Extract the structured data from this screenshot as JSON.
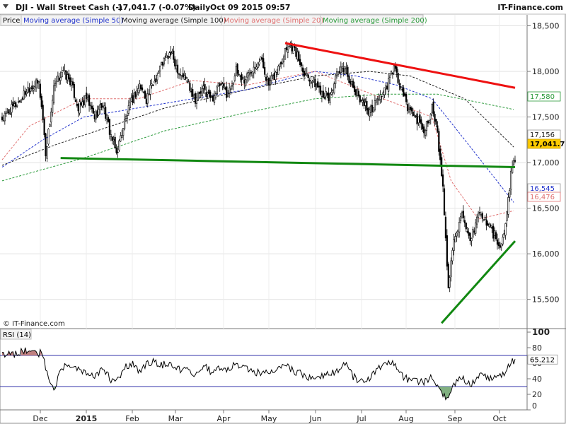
{
  "header": {
    "symbol": "DJI - Wall Street Cash (-)",
    "last": "17,041.7 (-0.07%)",
    "period": "Daily",
    "datetime": "Oct 09 2015 09:57",
    "brand": "IT-Finance.com"
  },
  "legend": {
    "price": "Price",
    "ma50": "Moving average (Simple 50)",
    "ma100": "Moving average (Simple 100)",
    "ma20": "Moving average (Simple 20)",
    "ma200": "Moving average (Simple 200)"
  },
  "watermark": "© IT-Finance.com",
  "colors": {
    "ma50": "#2233cc",
    "ma100": "#222222",
    "ma20": "#e07070",
    "ma200": "#2a9a3a",
    "resistance": "#ee1111",
    "support": "#118811",
    "last_label_bg": "#ffcc00"
  },
  "chart_data": [
    {
      "type": "candlestick",
      "x_ticks": [
        "Dec",
        "2015",
        "Feb",
        "Mar",
        "Apr",
        "May",
        "Jun",
        "Jul",
        "Aug",
        "Sep",
        "Oct"
      ],
      "y_ticks": [
        "18,500",
        "18,000",
        "17,500",
        "17,000",
        "16,500",
        "16,000",
        "15,500"
      ],
      "ylim": [
        15180,
        18620
      ],
      "labels": {
        "ma200": "17,580",
        "ma100": "17,156",
        "last": "17,041.7",
        "ma50": "16,545",
        "ma20": "16,476"
      },
      "close_anchors": [
        [
          0,
          17480
        ],
        [
          8,
          17600
        ],
        [
          14,
          17700
        ],
        [
          19,
          17820
        ],
        [
          27,
          17870
        ],
        [
          30,
          17480
        ],
        [
          32,
          17100
        ],
        [
          38,
          17800
        ],
        [
          44,
          18000
        ],
        [
          50,
          17900
        ],
        [
          56,
          17600
        ],
        [
          62,
          17700
        ],
        [
          68,
          17500
        ],
        [
          74,
          17650
        ],
        [
          79,
          17350
        ],
        [
          84,
          17100
        ],
        [
          90,
          17450
        ],
        [
          96,
          17700
        ],
        [
          101,
          17850
        ],
        [
          106,
          17700
        ],
        [
          112,
          17900
        ],
        [
          118,
          18100
        ],
        [
          124,
          18200
        ],
        [
          130,
          18000
        ],
        [
          136,
          17900
        ],
        [
          142,
          17700
        ],
        [
          148,
          17800
        ],
        [
          154,
          17700
        ],
        [
          160,
          17850
        ],
        [
          166,
          17750
        ],
        [
          172,
          18000
        ],
        [
          178,
          17900
        ],
        [
          184,
          18050
        ],
        [
          190,
          18150
        ],
        [
          196,
          17850
        ],
        [
          202,
          18000
        ],
        [
          208,
          18250
        ],
        [
          212,
          18300
        ],
        [
          216,
          18200
        ],
        [
          222,
          18000
        ],
        [
          228,
          17900
        ],
        [
          234,
          17800
        ],
        [
          240,
          17700
        ],
        [
          246,
          17950
        ],
        [
          252,
          18050
        ],
        [
          258,
          17800
        ],
        [
          264,
          17700
        ],
        [
          270,
          17550
        ],
        [
          276,
          17700
        ],
        [
          282,
          17800
        ],
        [
          288,
          18050
        ],
        [
          292,
          17850
        ],
        [
          298,
          17600
        ],
        [
          304,
          17500
        ],
        [
          310,
          17350
        ],
        [
          316,
          17600
        ],
        [
          320,
          17300
        ],
        [
          324,
          16700
        ],
        [
          326,
          16200
        ],
        [
          328,
          15600
        ],
        [
          332,
          16200
        ],
        [
          338,
          16400
        ],
        [
          344,
          16100
        ],
        [
          350,
          16450
        ],
        [
          356,
          16350
        ],
        [
          362,
          16200
        ],
        [
          366,
          16050
        ],
        [
          370,
          16300
        ],
        [
          374,
          16900
        ],
        [
          377,
          17042
        ]
      ],
      "moving_averages": {
        "ma20": [
          [
            0,
            17030
          ],
          [
            20,
            17400
          ],
          [
            60,
            17700
          ],
          [
            100,
            17700
          ],
          [
            140,
            17900
          ],
          [
            180,
            17850
          ],
          [
            230,
            18000
          ],
          [
            280,
            17700
          ],
          [
            316,
            17500
          ],
          [
            330,
            16800
          ],
          [
            350,
            16380
          ],
          [
            377,
            16476
          ]
        ],
        "ma50": [
          [
            0,
            16950
          ],
          [
            30,
            17250
          ],
          [
            60,
            17500
          ],
          [
            100,
            17600
          ],
          [
            140,
            17700
          ],
          [
            180,
            17800
          ],
          [
            230,
            18000
          ],
          [
            260,
            17950
          ],
          [
            290,
            17850
          ],
          [
            316,
            17700
          ],
          [
            340,
            17250
          ],
          [
            377,
            16545
          ]
        ],
        "ma100": [
          [
            0,
            16970
          ],
          [
            40,
            17200
          ],
          [
            80,
            17400
          ],
          [
            120,
            17600
          ],
          [
            180,
            17800
          ],
          [
            230,
            17950
          ],
          [
            270,
            18000
          ],
          [
            300,
            17950
          ],
          [
            340,
            17700
          ],
          [
            377,
            17156
          ]
        ],
        "ma200": [
          [
            0,
            16800
          ],
          [
            60,
            17050
          ],
          [
            120,
            17350
          ],
          [
            180,
            17550
          ],
          [
            230,
            17700
          ],
          [
            280,
            17750
          ],
          [
            320,
            17750
          ],
          [
            377,
            17580
          ]
        ]
      },
      "trendlines": [
        {
          "name": "resistance",
          "from": [
            208,
            18310
          ],
          "to": [
            377,
            17820
          ]
        },
        {
          "name": "support",
          "from": [
            43,
            17050
          ],
          "to": [
            377,
            16950
          ]
        },
        {
          "name": "rising-support",
          "from": [
            323,
            15240
          ],
          "to": [
            377,
            16140
          ]
        }
      ]
    },
    {
      "type": "line",
      "title": "RSI (14)",
      "y_ticks": [
        "100",
        "80",
        "60",
        "40",
        "20",
        "0"
      ],
      "ylim": [
        0,
        100
      ],
      "levels": [
        70,
        30
      ],
      "last_label": "65.212",
      "anchors": [
        [
          0,
          72
        ],
        [
          8,
          70
        ],
        [
          14,
          75
        ],
        [
          20,
          76
        ],
        [
          30,
          72
        ],
        [
          34,
          40
        ],
        [
          38,
          25
        ],
        [
          44,
          55
        ],
        [
          50,
          58
        ],
        [
          56,
          52
        ],
        [
          62,
          45
        ],
        [
          68,
          42
        ],
        [
          74,
          55
        ],
        [
          80,
          38
        ],
        [
          84,
          36
        ],
        [
          90,
          55
        ],
        [
          96,
          60
        ],
        [
          101,
          50
        ],
        [
          106,
          58
        ],
        [
          112,
          62
        ],
        [
          118,
          58
        ],
        [
          124,
          60
        ],
        [
          130,
          52
        ],
        [
          136,
          55
        ],
        [
          142,
          45
        ],
        [
          148,
          58
        ],
        [
          154,
          48
        ],
        [
          160,
          55
        ],
        [
          166,
          52
        ],
        [
          172,
          60
        ],
        [
          178,
          55
        ],
        [
          184,
          52
        ],
        [
          190,
          45
        ],
        [
          196,
          48
        ],
        [
          202,
          55
        ],
        [
          208,
          60
        ],
        [
          212,
          52
        ],
        [
          216,
          48
        ],
        [
          222,
          45
        ],
        [
          228,
          40
        ],
        [
          234,
          42
        ],
        [
          240,
          48
        ],
        [
          246,
          50
        ],
        [
          252,
          60
        ],
        [
          258,
          42
        ],
        [
          264,
          38
        ],
        [
          270,
          40
        ],
        [
          276,
          55
        ],
        [
          282,
          58
        ],
        [
          288,
          60
        ],
        [
          292,
          45
        ],
        [
          298,
          40
        ],
        [
          304,
          38
        ],
        [
          310,
          35
        ],
        [
          316,
          42
        ],
        [
          320,
          30
        ],
        [
          324,
          18
        ],
        [
          328,
          15
        ],
        [
          332,
          35
        ],
        [
          338,
          40
        ],
        [
          344,
          32
        ],
        [
          350,
          45
        ],
        [
          356,
          42
        ],
        [
          362,
          40
        ],
        [
          366,
          45
        ],
        [
          370,
          50
        ],
        [
          374,
          60
        ],
        [
          377,
          65.2
        ]
      ]
    }
  ]
}
